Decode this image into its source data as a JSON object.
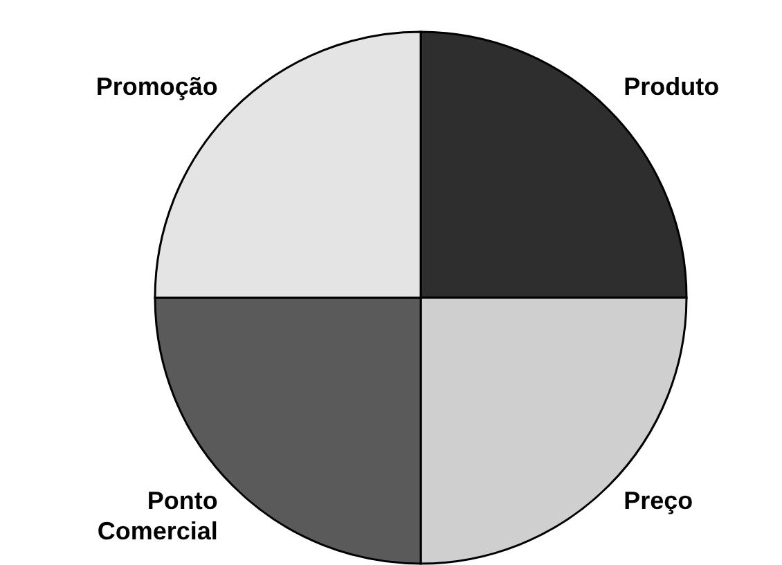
{
  "chart_data": {
    "type": "pie",
    "categories": [
      "Produto",
      "Preço",
      "Ponto Comercial",
      "Promoção"
    ],
    "values": [
      25,
      25,
      25,
      25
    ],
    "colors": [
      "#2e2e2e",
      "#cfcfcf",
      "#5a5a5a",
      "#e4e4e4"
    ]
  }
}
